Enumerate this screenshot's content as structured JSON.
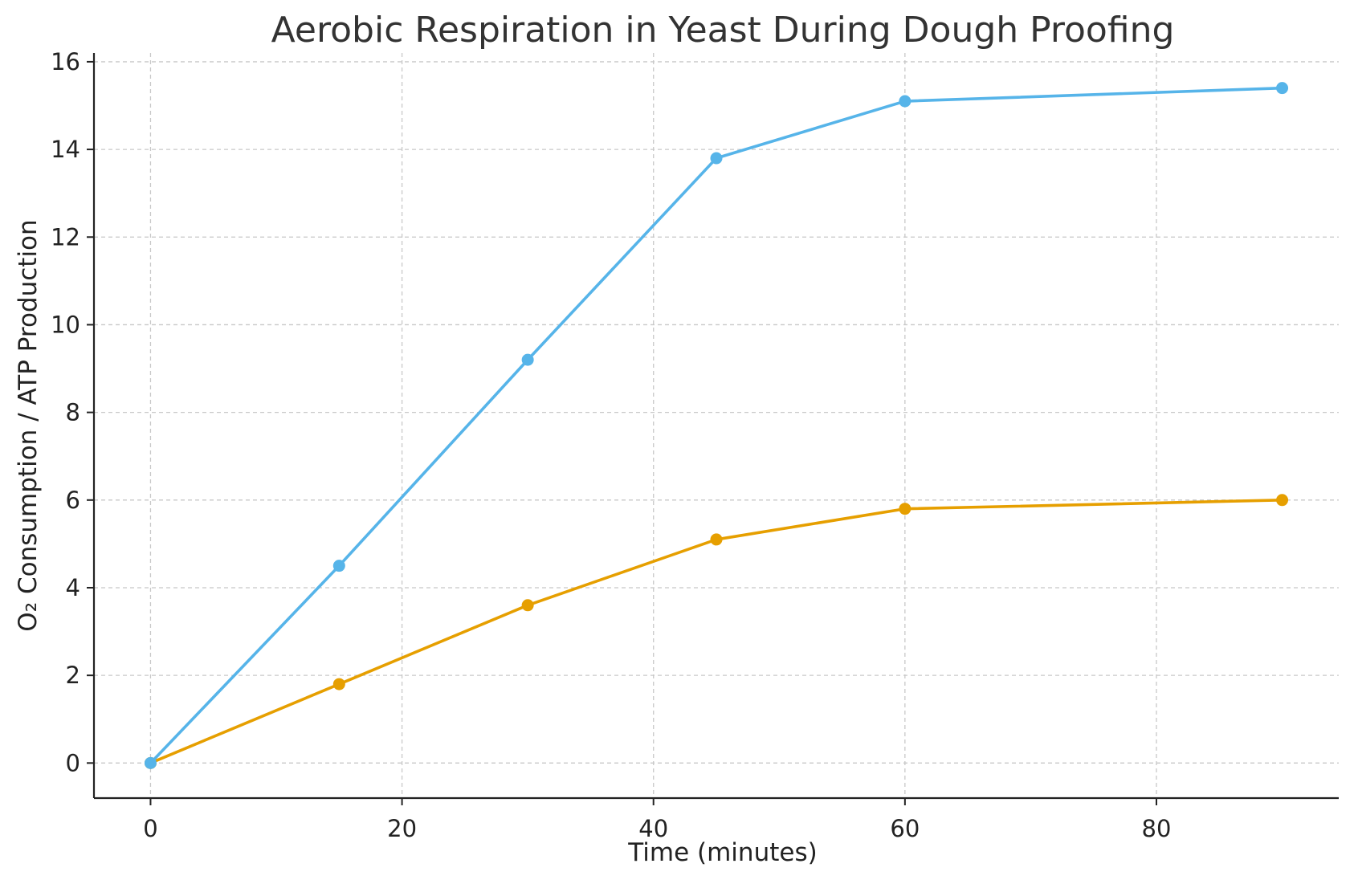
{
  "chart_data": {
    "type": "line",
    "title": "Aerobic Respiration in Yeast During Dough Proofing",
    "xlabel": "Time (minutes)",
    "ylabel": "O₂ Consumption / ATP Production",
    "x": [
      0,
      15,
      30,
      45,
      60,
      90
    ],
    "xlim": [
      -4.5,
      94.5
    ],
    "ylim": [
      -0.8,
      16.2
    ],
    "x_ticks": [
      0,
      20,
      40,
      60,
      80
    ],
    "y_ticks": [
      0,
      2,
      4,
      6,
      8,
      10,
      12,
      14,
      16
    ],
    "grid": true,
    "legend": "none",
    "series": [
      {
        "values": [
          0,
          4.5,
          9.2,
          13.8,
          15.1,
          15.4
        ],
        "color": "#56b4e9",
        "marker": "circle"
      },
      {
        "values": [
          0,
          1.8,
          3.6,
          5.1,
          5.8,
          6.0
        ],
        "color": "#e69f00",
        "marker": "circle"
      }
    ]
  }
}
